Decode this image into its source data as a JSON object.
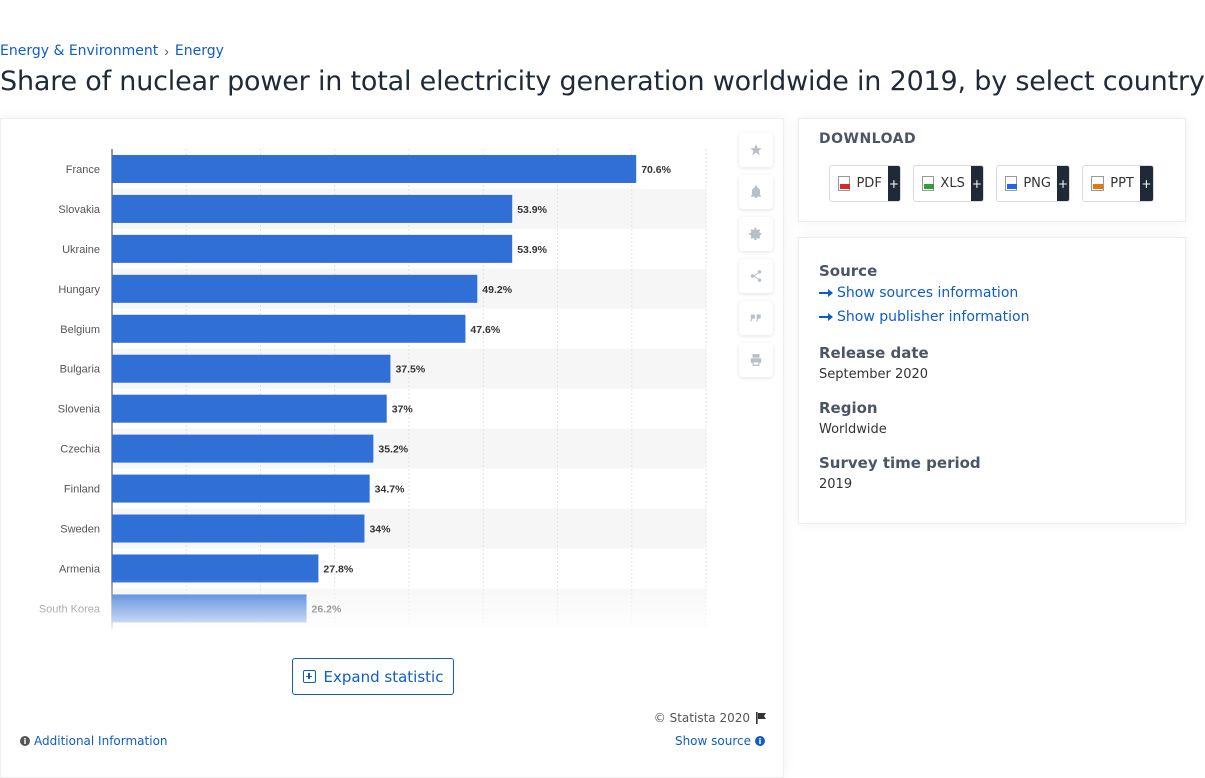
{
  "breadcrumb": {
    "items": [
      "Energy & Environment",
      "Energy"
    ],
    "separator": "›"
  },
  "page_title": "Share of nuclear power in total electricity generation worldwide in 2019, by select country",
  "chart_data": {
    "type": "bar",
    "orientation": "horizontal",
    "categories": [
      "France",
      "Slovakia",
      "Ukraine",
      "Hungary",
      "Belgium",
      "Bulgaria",
      "Slovenia",
      "Czechia",
      "Finland",
      "Sweden",
      "Armenia",
      "South Korea"
    ],
    "values": [
      70.6,
      53.9,
      53.9,
      49.2,
      47.6,
      37.5,
      37,
      35.2,
      34.7,
      34,
      27.8,
      26.2
    ],
    "value_labels": [
      "70.6%",
      "53.9%",
      "53.9%",
      "49.2%",
      "47.6%",
      "37.5%",
      "37%",
      "35.2%",
      "34.7%",
      "34%",
      "27.8%",
      "26.2%"
    ],
    "xlim": [
      0,
      80
    ],
    "unit": "%",
    "bar_color": "#2f6fd6",
    "grid": true,
    "title": "",
    "xlabel": "",
    "ylabel": ""
  },
  "chart_actions": {
    "icons": [
      "star-icon",
      "bell-icon",
      "gear-icon",
      "share-icon",
      "quote-icon",
      "print-icon"
    ]
  },
  "expand_label": "Expand statistic",
  "copyright": "© Statista 2020",
  "additional_info": "Additional Information",
  "show_source": "Show source",
  "download": {
    "title": "DOWNLOAD",
    "buttons": [
      "PDF",
      "XLS",
      "PNG",
      "PPT"
    ],
    "plus": "+"
  },
  "info": {
    "source_heading": "Source",
    "show_sources": "Show sources information",
    "show_publisher": "Show publisher information",
    "release_heading": "Release date",
    "release_value": "September 2020",
    "region_heading": "Region",
    "region_value": "Worldwide",
    "survey_heading": "Survey time period",
    "survey_value": "2019"
  },
  "colors": {
    "accent": "#0f5ccc",
    "bar": "#2f6fd6"
  }
}
